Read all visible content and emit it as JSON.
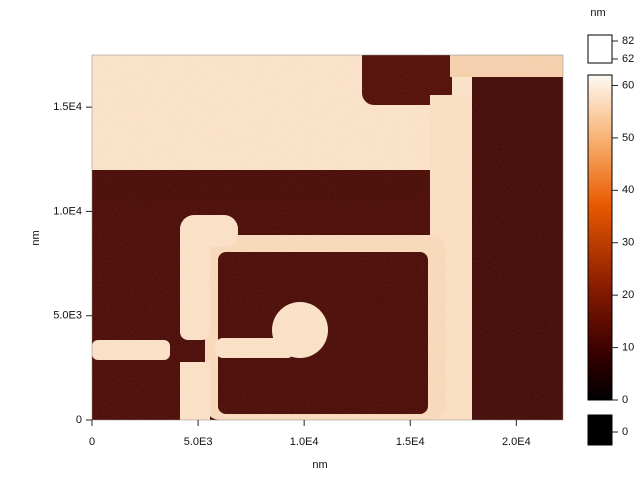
{
  "chart_data": {
    "type": "heatmap",
    "xlabel": "nm",
    "ylabel": "nm",
    "xlim": [
      0,
      22200
    ],
    "ylim": [
      0,
      17500
    ],
    "xticks": [
      0,
      {
        "value": 5000,
        "label": "5.0E3"
      },
      {
        "value": 10000,
        "label": "1.0E4"
      },
      {
        "value": 15000,
        "label": "1.5E4"
      },
      {
        "value": 20000,
        "label": "2.0E4"
      }
    ],
    "yticks": [
      0,
      {
        "value": 5000,
        "label": "5.0E3"
      },
      {
        "value": 10000,
        "label": "1.0E4"
      },
      {
        "value": 15000,
        "label": "1.5E4"
      }
    ],
    "colorbar": {
      "title": "nm",
      "clim": [
        0,
        62
      ],
      "ticks": [
        0,
        10,
        20,
        30,
        40,
        50,
        60
      ],
      "over_ticks": [
        82,
        62
      ],
      "under_ticks": [
        0
      ]
    }
  }
}
